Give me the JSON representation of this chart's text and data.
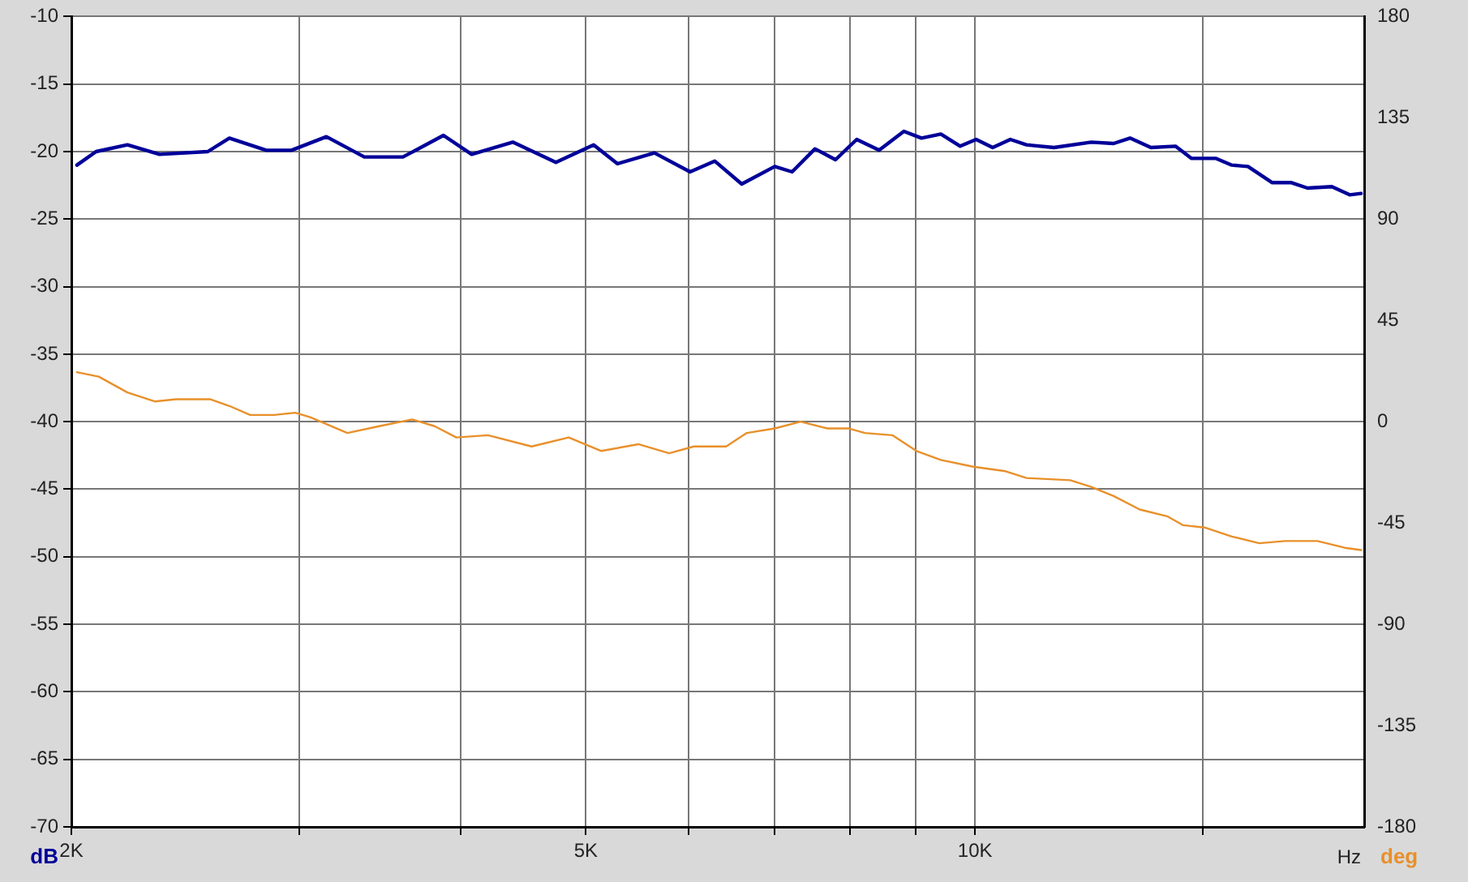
{
  "chart_data": {
    "type": "line",
    "xlabel": "Hz",
    "ylabel": "dB",
    "y2label": "deg",
    "log": "x",
    "grid": true,
    "legend": false,
    "marker": "none",
    "line_style": "solid",
    "xlim": [
      2000,
      20000
    ],
    "xticks": [
      {
        "value": 2000,
        "label": "2K"
      },
      {
        "value": 3000,
        "label": null
      },
      {
        "value": 4000,
        "label": null
      },
      {
        "value": 5000,
        "label": "5K"
      },
      {
        "value": 6000,
        "label": null
      },
      {
        "value": 7000,
        "label": null
      },
      {
        "value": 8000,
        "label": null
      },
      {
        "value": 9000,
        "label": null
      },
      {
        "value": 10000,
        "label": "10K"
      },
      {
        "value": 15000,
        "label": null
      }
    ],
    "ylim": [
      -70,
      -10
    ],
    "yticks": [
      -70,
      -65,
      -60,
      -55,
      -50,
      -45,
      -40,
      -35,
      -30,
      -25,
      -20,
      -15,
      -10
    ],
    "y2lim": [
      -180,
      180
    ],
    "y2ticks": [
      -180,
      -135,
      -90,
      -45,
      0,
      45,
      90,
      135,
      180
    ],
    "series": [
      {
        "color": "#000099",
        "x": [
          2020,
          2090,
          2210,
          2340,
          2550,
          2650,
          2830,
          2960,
          3150,
          3370,
          3610,
          3880,
          4080,
          4390,
          4740,
          5070,
          5290,
          5650,
          6020,
          6290,
          6600,
          7000,
          7220,
          7520,
          7800,
          8100,
          8430,
          8810,
          9090,
          9410,
          9740,
          10020,
          10320,
          10650,
          10960,
          11510,
          12300,
          12800,
          13180,
          13680,
          14290,
          14700,
          15350,
          15800,
          16260,
          16980,
          17570,
          18080,
          18880,
          19490,
          19890
        ],
        "values": [
          -21.0,
          -20.0,
          -19.5,
          -20.2,
          -20.0,
          -19.0,
          -19.9,
          -19.9,
          -18.9,
          -20.4,
          -20.4,
          -18.8,
          -20.2,
          -19.3,
          -20.8,
          -19.5,
          -20.9,
          -20.1,
          -21.5,
          -20.7,
          -22.4,
          -21.1,
          -21.5,
          -19.8,
          -20.6,
          -19.1,
          -19.9,
          -18.5,
          -19.0,
          -18.7,
          -19.6,
          -19.1,
          -19.7,
          -19.1,
          -19.5,
          -19.7,
          -19.3,
          -19.4,
          -19.0,
          -19.7,
          -19.6,
          -20.5,
          -20.5,
          -21.0,
          -21.1,
          -22.3,
          -22.3,
          -22.7,
          -22.6,
          -23.2,
          -23.1
        ]
      },
      {
        "color": "#e8902a",
        "axis": "y2",
        "x": [
          2020,
          2100,
          2210,
          2320,
          2410,
          2560,
          2650,
          2750,
          2870,
          2980,
          3060,
          3270,
          3460,
          3670,
          3820,
          3970,
          4200,
          4540,
          4850,
          5140,
          5490,
          5800,
          6060,
          6420,
          6660,
          7000,
          7330,
          7690,
          7990,
          8220,
          8630,
          9010,
          9410,
          9970,
          10560,
          10960,
          11850,
          12300,
          12800,
          13410,
          14080,
          14490,
          15050,
          15800,
          16590,
          17370,
          18400,
          19320,
          19890
        ],
        "values": [
          22,
          20,
          13,
          9,
          10,
          10,
          7,
          3,
          3,
          4,
          2,
          -5,
          -2,
          1,
          -2,
          -7,
          -6,
          -11,
          -7,
          -13,
          -10,
          -14,
          -11,
          -11,
          -5,
          -3,
          0,
          -3,
          -3,
          -5,
          -6,
          -13,
          -17,
          -20,
          -22,
          -25,
          -26,
          -29,
          -33,
          -39,
          -42,
          -46,
          -47,
          -51,
          -54,
          -53,
          -53,
          -56,
          -57
        ]
      }
    ]
  }
}
